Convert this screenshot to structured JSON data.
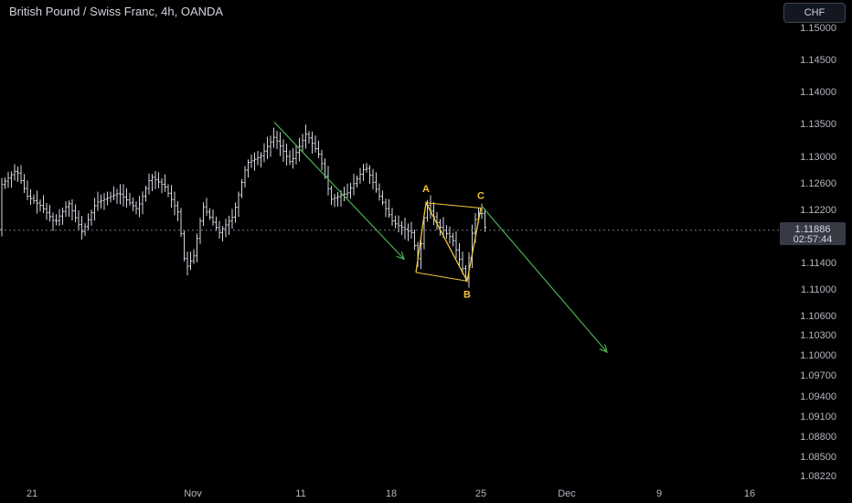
{
  "header": {
    "title": "British Pound / Swiss Franc, 4h, OANDA",
    "currency_button": "CHF"
  },
  "price_badge": {
    "price": "1.11886",
    "countdown": "02:57:44"
  },
  "colors": {
    "background": "#000000",
    "bar": "#d1d4dc",
    "pattern": "#f0c43c",
    "arrow": "#4caf50",
    "axis_text": "#b2b5be",
    "badge": "#363a45"
  },
  "chart_data": {
    "type": "ohlc",
    "y_ticks": [
      "1.15000",
      "1.14500",
      "1.14000",
      "1.13500",
      "1.13000",
      "1.12600",
      "1.12200",
      "1.11400",
      "1.11000",
      "1.10600",
      "1.10300",
      "1.10000",
      "1.09700",
      "1.09400",
      "1.09100",
      "1.08800",
      "1.08500",
      "1.08220"
    ],
    "x_ticks": [
      "21",
      "Nov",
      "11",
      "18",
      "25",
      "Dec",
      "9",
      "16"
    ],
    "ylim": [
      1.0795,
      1.1525
    ],
    "current_price": 1.11886,
    "bars_summary": [
      {
        "label": "21",
        "close": 1.1255
      },
      {
        "label": "Nov",
        "close": 1.119
      },
      {
        "label": "11",
        "close": 1.131
      },
      {
        "label": "18",
        "close": 1.118
      },
      {
        "label": "25",
        "close": 1.119
      }
    ],
    "pattern": {
      "points": [
        {
          "label": "A",
          "price": 1.123
        },
        {
          "label": "B",
          "price": 1.1112
        },
        {
          "label": "C",
          "price": 1.1222
        }
      ]
    },
    "projection_target": 1.1004,
    "grid": false
  }
}
